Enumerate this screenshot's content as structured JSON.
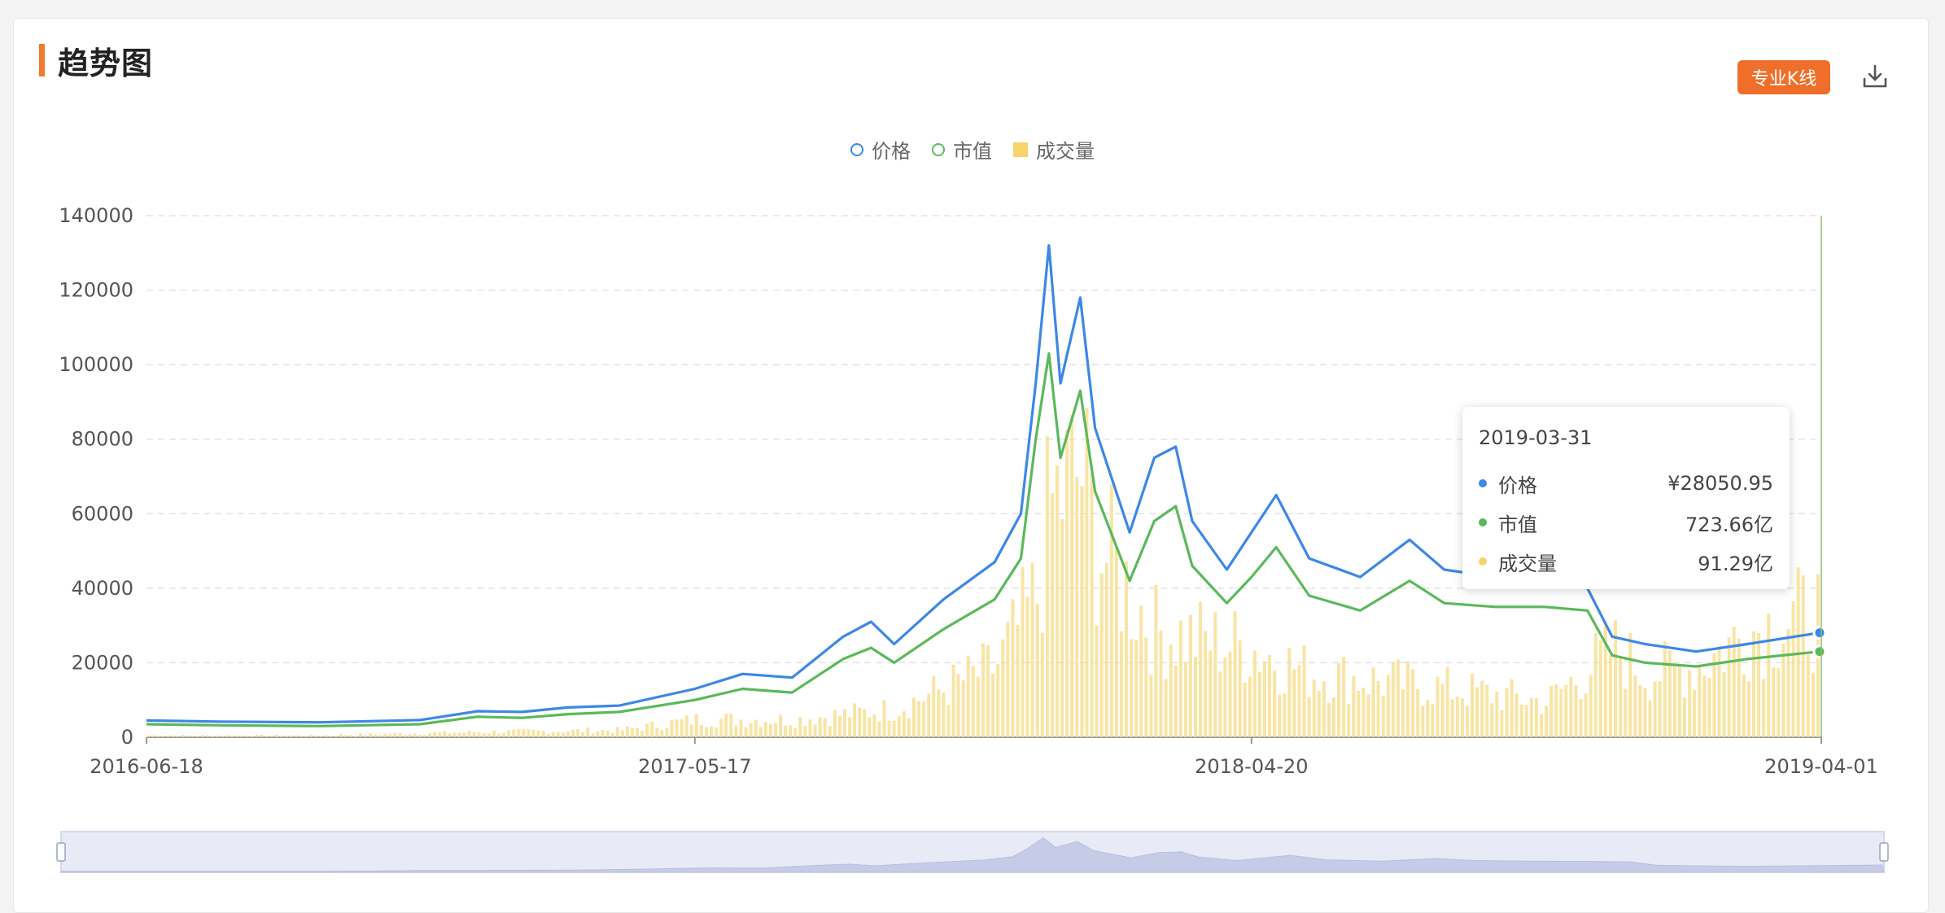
{
  "header": {
    "title": "趋势图",
    "kline_label": "专业K线"
  },
  "icons": {
    "download": "download-icon"
  },
  "colors": {
    "accent": "#f07a2e",
    "price": "#3d87e6",
    "market_cap": "#5cb85c",
    "volume": "#f6d36b"
  },
  "legend": [
    {
      "label": "价格",
      "shape": "circle",
      "color": "#3d87e6"
    },
    {
      "label": "市值",
      "shape": "circle",
      "color": "#5cb85c"
    },
    {
      "label": "成交量",
      "shape": "square",
      "color": "#f6d36b"
    }
  ],
  "tooltip": {
    "date": "2019-03-31",
    "rows": [
      {
        "label": "价格",
        "value": "¥28050.95",
        "color": "#3d87e6"
      },
      {
        "label": "市值",
        "value": "723.66亿",
        "color": "#5cb85c"
      },
      {
        "label": "成交量",
        "value": "91.29亿",
        "color": "#f6d36b"
      }
    ]
  },
  "chart_data": {
    "type": "line",
    "x_tick_labels": [
      "2016-06-18",
      "2017-05-17",
      "2018-04-20",
      "2019-04-01"
    ],
    "y_tick_labels": [
      "0",
      "20000",
      "40000",
      "60000",
      "80000",
      "100000",
      "120000",
      "140000"
    ],
    "ylim": [
      0,
      140000
    ],
    "xlim": [
      "2016-06-18",
      "2019-04-01"
    ],
    "grid": true,
    "legend_position": "top-center",
    "series": [
      {
        "name": "价格",
        "type": "line",
        "x": [
          "2016-06-18",
          "2016-08-01",
          "2016-10-01",
          "2016-12-01",
          "2017-01-05",
          "2017-02-01",
          "2017-03-01",
          "2017-04-01",
          "2017-05-17",
          "2017-06-15",
          "2017-07-15",
          "2017-08-15",
          "2017-09-01",
          "2017-09-15",
          "2017-10-15",
          "2017-11-15",
          "2017-12-01",
          "2017-12-10",
          "2017-12-18",
          "2017-12-25",
          "2018-01-06",
          "2018-01-15",
          "2018-02-05",
          "2018-02-20",
          "2018-03-05",
          "2018-03-15",
          "2018-04-05",
          "2018-04-20",
          "2018-05-05",
          "2018-05-25",
          "2018-06-25",
          "2018-07-25",
          "2018-08-15",
          "2018-09-15",
          "2018-10-15",
          "2018-11-10",
          "2018-11-25",
          "2018-12-15",
          "2019-01-15",
          "2019-02-15",
          "2019-03-31"
        ],
        "values": [
          4500,
          4200,
          4000,
          4600,
          7000,
          6800,
          8000,
          8500,
          13000,
          17000,
          16000,
          27000,
          31000,
          25000,
          37000,
          47000,
          60000,
          95000,
          132000,
          95000,
          118000,
          83000,
          55000,
          75000,
          78000,
          58000,
          45000,
          55000,
          65000,
          48000,
          43000,
          53000,
          45000,
          43000,
          42000,
          40000,
          27000,
          25000,
          23000,
          25000,
          28050.95
        ]
      },
      {
        "name": "市值",
        "type": "line",
        "x": [
          "2016-06-18",
          "2016-08-01",
          "2016-10-01",
          "2016-12-01",
          "2017-01-05",
          "2017-02-01",
          "2017-03-01",
          "2017-04-01",
          "2017-05-17",
          "2017-06-15",
          "2017-07-15",
          "2017-08-15",
          "2017-09-01",
          "2017-09-15",
          "2017-10-15",
          "2017-11-15",
          "2017-12-01",
          "2017-12-10",
          "2017-12-18",
          "2017-12-25",
          "2018-01-06",
          "2018-01-15",
          "2018-02-05",
          "2018-02-20",
          "2018-03-05",
          "2018-03-15",
          "2018-04-05",
          "2018-04-20",
          "2018-05-05",
          "2018-05-25",
          "2018-06-25",
          "2018-07-25",
          "2018-08-15",
          "2018-09-15",
          "2018-10-15",
          "2018-11-10",
          "2018-11-25",
          "2018-12-15",
          "2019-01-15",
          "2019-02-15",
          "2019-03-31"
        ],
        "values": [
          3500,
          3200,
          3000,
          3500,
          5500,
          5200,
          6200,
          6800,
          10000,
          13000,
          12000,
          21000,
          24000,
          20000,
          29000,
          37000,
          48000,
          80000,
          103000,
          75000,
          93000,
          66000,
          42000,
          58000,
          62000,
          46000,
          36000,
          43000,
          51000,
          38000,
          34000,
          42000,
          36000,
          35000,
          35000,
          34000,
          22000,
          20000,
          19000,
          21000,
          23000
        ]
      },
      {
        "name": "成交量",
        "type": "bar",
        "x": [
          "2016-06-18",
          "2016-10-01",
          "2017-01-05",
          "2017-04-01",
          "2017-05-17",
          "2017-07-15",
          "2017-09-15",
          "2017-11-15",
          "2017-12-10",
          "2017-12-18",
          "2018-01-06",
          "2018-01-15",
          "2018-02-20",
          "2018-03-15",
          "2018-04-20",
          "2018-05-25",
          "2018-07-25",
          "2018-09-15",
          "2018-10-15",
          "2018-11-25",
          "2018-12-15",
          "2019-01-15",
          "2019-02-15",
          "2019-03-31"
        ],
        "values": [
          500,
          500,
          1500,
          2000,
          5000,
          5000,
          8000,
          20000,
          40000,
          65000,
          75000,
          55000,
          30000,
          28000,
          25000,
          18000,
          15000,
          12000,
          10000,
          25000,
          18000,
          20000,
          30000,
          35000
        ]
      }
    ]
  },
  "zoom": {
    "start": 0,
    "end": 1
  }
}
